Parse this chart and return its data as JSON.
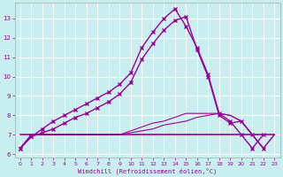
{
  "xlabel": "Windchill (Refroidissement éolien,°C)",
  "xlim": [
    -0.5,
    23.5
  ],
  "ylim": [
    5.8,
    13.8
  ],
  "yticks": [
    6,
    7,
    8,
    9,
    10,
    11,
    12,
    13
  ],
  "xticks": [
    0,
    1,
    2,
    3,
    4,
    5,
    6,
    7,
    8,
    9,
    10,
    11,
    12,
    13,
    14,
    15,
    16,
    17,
    18,
    19,
    20,
    21,
    22,
    23
  ],
  "background_color": "#c8eef0",
  "grid_color": "#ffffff",
  "line_color": "#990099",
  "lines": [
    {
      "x": [
        0,
        1,
        2,
        3,
        4,
        5,
        6,
        7,
        8,
        9,
        10,
        11,
        12,
        13,
        14,
        15,
        16,
        17,
        18,
        19,
        20,
        21,
        22
      ],
      "y": [
        6.3,
        6.9,
        7.3,
        7.7,
        8.0,
        8.3,
        8.6,
        8.9,
        9.2,
        9.6,
        10.2,
        11.5,
        12.3,
        13.0,
        13.5,
        12.6,
        11.5,
        10.1,
        8.1,
        7.7,
        7.0,
        6.3,
        7.0
      ],
      "marker": "x",
      "markersize": 3.0,
      "linewidth": 1.0
    },
    {
      "x": [
        0,
        1,
        2,
        3,
        4,
        5,
        6,
        7,
        8,
        9,
        10,
        11,
        12,
        13,
        14,
        15,
        16,
        17,
        18,
        19,
        20,
        21,
        22
      ],
      "y": [
        6.3,
        6.9,
        7.1,
        7.3,
        7.6,
        7.9,
        8.1,
        8.4,
        8.7,
        9.1,
        9.7,
        10.9,
        11.7,
        12.4,
        12.9,
        13.1,
        11.4,
        10.0,
        8.0,
        7.6,
        7.7,
        7.0,
        6.3
      ],
      "marker": "x",
      "markersize": 3.0,
      "linewidth": 1.0
    },
    {
      "x": [
        0,
        1,
        2,
        3,
        4,
        5,
        6,
        7,
        8,
        9,
        10,
        11,
        12,
        13,
        14,
        15,
        16,
        17,
        18,
        19,
        20,
        21,
        22,
        23
      ],
      "y": [
        7.0,
        7.0,
        7.0,
        7.0,
        7.0,
        7.0,
        7.0,
        7.0,
        7.0,
        7.0,
        7.0,
        7.0,
        7.0,
        7.0,
        7.0,
        7.0,
        7.0,
        7.0,
        7.0,
        7.0,
        7.0,
        7.0,
        7.0,
        7.0
      ],
      "marker": null,
      "markersize": 0,
      "linewidth": 1.2
    },
    {
      "x": [
        0,
        1,
        2,
        3,
        4,
        5,
        6,
        7,
        8,
        9,
        10,
        11,
        12,
        13,
        14,
        15,
        16,
        17,
        18,
        19,
        20,
        21,
        22,
        23
      ],
      "y": [
        6.3,
        7.0,
        7.0,
        7.0,
        7.0,
        7.0,
        7.0,
        7.0,
        7.0,
        7.0,
        7.1,
        7.2,
        7.3,
        7.5,
        7.6,
        7.7,
        7.9,
        8.0,
        8.1,
        8.0,
        7.7,
        7.0,
        6.3,
        7.0
      ],
      "marker": null,
      "markersize": 0,
      "linewidth": 0.8
    },
    {
      "x": [
        0,
        1,
        2,
        3,
        4,
        5,
        6,
        7,
        8,
        9,
        10,
        11,
        12,
        13,
        14,
        15,
        16,
        17,
        18,
        19,
        20,
        21,
        22,
        23
      ],
      "y": [
        6.3,
        7.0,
        7.0,
        7.0,
        7.0,
        7.0,
        7.0,
        7.0,
        7.0,
        7.0,
        7.2,
        7.4,
        7.6,
        7.7,
        7.9,
        8.1,
        8.1,
        8.1,
        8.1,
        8.0,
        7.7,
        7.0,
        6.3,
        7.0
      ],
      "marker": null,
      "markersize": 0,
      "linewidth": 0.8
    }
  ]
}
